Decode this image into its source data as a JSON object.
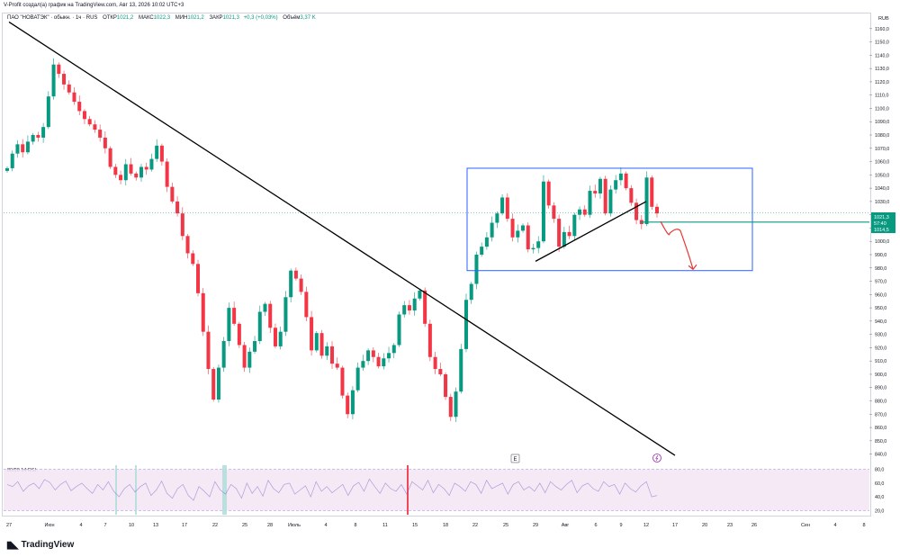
{
  "header": {
    "credit": "V-Profit создал(а) график на TradingView.com, Авг 13, 2026 10:02 UTC+3"
  },
  "legend": {
    "symbol": "ПАО \"НОВАТЭК\" · обыкн. · 1ч · RUS",
    "open_label": "ОТКР",
    "open": "1021,2",
    "high_label": "МАКС",
    "high": "1022,3",
    "low_label": "МИН",
    "low": "1021,2",
    "close_label": "ЗАКР",
    "close": "1021,3",
    "change": "+0,3 (+0,03%)",
    "volume_label": "Объём",
    "volume": "3,37 K"
  },
  "rsi": {
    "label": "80/20 14 RSI"
  },
  "price_badges": {
    "last": "1021,3",
    "countdown": "57:40",
    "level": "1014,5"
  },
  "markers": {
    "earnings": "E"
  },
  "footer": {
    "brand": "TradingView"
  },
  "colors": {
    "up": "#089981",
    "down": "#f23645",
    "rectangle": "#2962ff",
    "level": "#089981",
    "arrow": "#e53935",
    "rsi_line": "#7e57c2"
  },
  "chart_data": [
    {
      "type": "candlestick",
      "currency_label": "RUB",
      "ylim": [
        835,
        1168
      ],
      "y_ticks": [
        "840,0",
        "850,0",
        "860,0",
        "870,0",
        "880,0",
        "890,0",
        "900,0",
        "910,0",
        "920,0",
        "930,0",
        "940,0",
        "950,0",
        "960,0",
        "970,0",
        "980,0",
        "990,0",
        "1000,0",
        "1010,0",
        "1020,0",
        "1030,0",
        "1040,0",
        "1050,0",
        "1060,0",
        "1070,0",
        "1080,0",
        "1090,0",
        "1100,0",
        "1110,0",
        "1120,0",
        "1130,0",
        "1140,0",
        "1150,0",
        "1160,0"
      ],
      "x_ticks": [
        "27",
        "Июн",
        "4",
        "7",
        "10",
        "13",
        "17",
        "22",
        "25",
        "28",
        "Июль",
        "4",
        "8",
        "11",
        "15",
        "18",
        "22",
        "25",
        "29",
        "Авг",
        "6",
        "9",
        "12",
        "17",
        "20",
        "23",
        "26",
        "Сен",
        "4",
        "8"
      ],
      "hourly_closes": [
        1055,
        1066,
        1073,
        1067,
        1075,
        1080,
        1078,
        1086,
        1109,
        1133,
        1126,
        1118,
        1112,
        1105,
        1098,
        1092,
        1088,
        1084,
        1078,
        1070,
        1056,
        1050,
        1046,
        1058,
        1051,
        1048,
        1056,
        1054,
        1062,
        1072,
        1060,
        1041,
        1030,
        1021,
        1004,
        991,
        983,
        961,
        932,
        904,
        881,
        905,
        925,
        950,
        938,
        922,
        905,
        917,
        925,
        947,
        953,
        935,
        921,
        932,
        958,
        978,
        972,
        962,
        943,
        918,
        931,
        914,
        921,
        908,
        905,
        884,
        870,
        888,
        905,
        910,
        918,
        913,
        906,
        912,
        916,
        922,
        945,
        952,
        948,
        957,
        963,
        938,
        913,
        904,
        900,
        883,
        868,
        887,
        919,
        956,
        968,
        990,
        996,
        1003,
        1014,
        1021,
        1033,
        1017,
        1003,
        1008,
        1012,
        994,
        995,
        1000,
        1045,
        1027,
        1017,
        996,
        1007,
        1004,
        1020,
        1024,
        1020,
        1038,
        1036,
        1047,
        1021,
        1039,
        1046,
        1051,
        1040,
        1029,
        1016,
        1013,
        1048,
        1026,
        1021
      ],
      "trendlines": [
        {
          "from": [
            "27",
            1165
          ],
          "to": [
            "17",
            839
          ]
        },
        {
          "from": [
            "29",
            985
          ],
          "to": [
            "12",
            1030
          ]
        }
      ],
      "range_box": {
        "from": "22",
        "to": "17",
        "low": 978,
        "high": 1055
      },
      "level": 1014.5,
      "last_price": 1021.3,
      "projected_path": [
        1015,
        1006,
        1008,
        979
      ]
    },
    {
      "type": "line",
      "series": [
        {
          "name": "RSI"
        }
      ],
      "ylim": [
        14,
        86
      ],
      "y_ticks": [
        "20,0",
        "40,0",
        "60,0",
        "80,0"
      ],
      "bands": [
        20,
        80
      ],
      "values": [
        58,
        55,
        62,
        48,
        56,
        60,
        52,
        65,
        61,
        50,
        58,
        63,
        49,
        55,
        60,
        52,
        45,
        58,
        50,
        62,
        48,
        40,
        52,
        58,
        47,
        55,
        60,
        42,
        50,
        63,
        45,
        38,
        52,
        58,
        42,
        35,
        55,
        48,
        40,
        62,
        50,
        44,
        58,
        52,
        38,
        60,
        45,
        55,
        41,
        64,
        52,
        46,
        58,
        60,
        44,
        50,
        56,
        40,
        62,
        48,
        55,
        46,
        52,
        58,
        42,
        56,
        61,
        48,
        66,
        55,
        45,
        60,
        52,
        48,
        58,
        44,
        62,
        56,
        50,
        64,
        46,
        58,
        52,
        42,
        60,
        55,
        48,
        62,
        58,
        45,
        64,
        52,
        56,
        60,
        44,
        58,
        62,
        50,
        55,
        48,
        60,
        46,
        62,
        55,
        50,
        58,
        64,
        46,
        56,
        60,
        52,
        48,
        62,
        55,
        58,
        44,
        60,
        52,
        47,
        56,
        62,
        40,
        42
      ]
    }
  ]
}
